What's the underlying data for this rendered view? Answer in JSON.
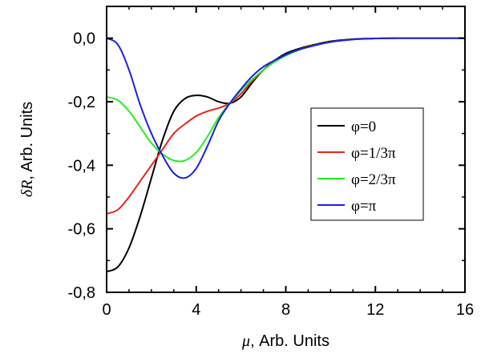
{
  "chart_data": {
    "type": "line",
    "title": "",
    "xlabel": {
      "symbol": "μ",
      "suffix": ", Arb. Units"
    },
    "ylabel": {
      "symbol": "δR",
      "suffix": ", Arb. Units"
    },
    "xlim": [
      0,
      16
    ],
    "ylim": [
      -0.8,
      0.1
    ],
    "xticks": [
      0,
      4,
      8,
      12,
      16
    ],
    "xtick_labels": [
      "0",
      "4",
      "8",
      "12",
      "16"
    ],
    "yticks": [
      0.0,
      -0.2,
      -0.4,
      -0.6,
      -0.8
    ],
    "ytick_labels": [
      "0,0",
      "-0,2",
      "-0,4",
      "-0,6",
      "-0,8"
    ],
    "grid": false,
    "legend_position": "right",
    "series": [
      {
        "name": "φ=0",
        "color": "#000000",
        "x": [
          0,
          0.5,
          1,
          1.5,
          2,
          2.5,
          3,
          3.5,
          4,
          4.5,
          5,
          5.5,
          6,
          6.5,
          7,
          7.5,
          8,
          8.5,
          9,
          10,
          11,
          12,
          13,
          14,
          15,
          16
        ],
        "y": [
          -0.735,
          -0.72,
          -0.66,
          -0.56,
          -0.44,
          -0.32,
          -0.23,
          -0.19,
          -0.18,
          -0.185,
          -0.2,
          -0.205,
          -0.185,
          -0.14,
          -0.1,
          -0.07,
          -0.048,
          -0.035,
          -0.025,
          -0.01,
          -0.003,
          -0.001,
          0,
          0,
          0,
          0
        ]
      },
      {
        "name": "φ=1/3π",
        "color": "#e8231b",
        "x": [
          0,
          0.5,
          1,
          1.5,
          2,
          2.5,
          3,
          3.5,
          4,
          4.5,
          5,
          5.5,
          6,
          6.5,
          7,
          7.5,
          8,
          8.5,
          9,
          10,
          11,
          12,
          13,
          14,
          15,
          16
        ],
        "y": [
          -0.553,
          -0.54,
          -0.5,
          -0.45,
          -0.4,
          -0.35,
          -0.3,
          -0.27,
          -0.245,
          -0.23,
          -0.22,
          -0.205,
          -0.175,
          -0.135,
          -0.1,
          -0.072,
          -0.052,
          -0.038,
          -0.027,
          -0.012,
          -0.004,
          -0.001,
          0,
          0,
          0,
          0
        ]
      },
      {
        "name": "φ=2/3π",
        "color": "#22ee22",
        "x": [
          0,
          0.5,
          1,
          1.5,
          2,
          2.5,
          3,
          3.5,
          4,
          4.5,
          5,
          5.5,
          6,
          6.5,
          7,
          7.5,
          8,
          8.5,
          9,
          10,
          11,
          12,
          13,
          14,
          15,
          16
        ],
        "y": [
          -0.185,
          -0.195,
          -0.23,
          -0.28,
          -0.33,
          -0.365,
          -0.385,
          -0.385,
          -0.36,
          -0.31,
          -0.25,
          -0.205,
          -0.165,
          -0.13,
          -0.1,
          -0.075,
          -0.055,
          -0.04,
          -0.028,
          -0.012,
          -0.004,
          -0.001,
          0,
          0,
          0,
          0
        ]
      },
      {
        "name": "φ=π",
        "color": "#1d1de8",
        "x": [
          0,
          0.5,
          1,
          1.5,
          2,
          2.5,
          3,
          3.5,
          4,
          4.5,
          5,
          5.5,
          6,
          6.5,
          7,
          7.5,
          8,
          8.5,
          9,
          10,
          11,
          12,
          13,
          14,
          15,
          16
        ],
        "y": [
          0.0,
          -0.02,
          -0.1,
          -0.21,
          -0.3,
          -0.37,
          -0.425,
          -0.44,
          -0.41,
          -0.34,
          -0.26,
          -0.205,
          -0.16,
          -0.12,
          -0.09,
          -0.07,
          -0.052,
          -0.038,
          -0.028,
          -0.012,
          -0.004,
          -0.001,
          0,
          0,
          0,
          0
        ]
      }
    ]
  }
}
